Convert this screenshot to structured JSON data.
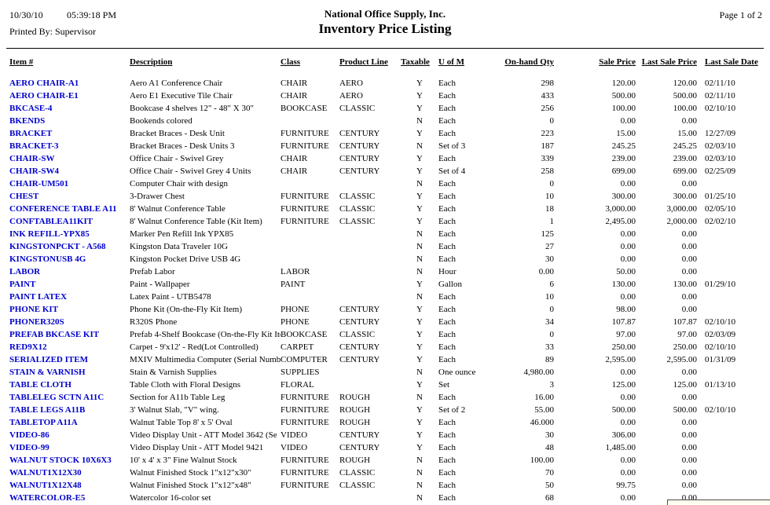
{
  "report": {
    "date": "10/30/10",
    "time": "05:39:18 PM",
    "printed_by": "Printed By: Supervisor",
    "company": "National Office Supply, Inc.",
    "title": "Inventory Price Listing",
    "page": "Page 1 of 2"
  },
  "colors": {
    "item_link": "#0000cc",
    "text": "#000000",
    "background": "#ffffff",
    "popup_fill": "#fffff0"
  },
  "table": {
    "columns": [
      "Item #",
      "Description",
      "Class",
      "Product Line",
      "Taxable",
      "U of M",
      "On-hand Qty",
      "Sale Price",
      "Last Sale Price",
      "Last Sale Date"
    ],
    "rows": [
      [
        "AERO CHAIR-A1",
        "Aero A1 Conference Chair",
        "CHAIR",
        "AERO",
        "Y",
        "Each",
        "298",
        "120.00",
        "120.00",
        "02/11/10"
      ],
      [
        "AERO CHAIR-E1",
        "Aero E1 Executive Tile Chair",
        "CHAIR",
        "AERO",
        "Y",
        "Each",
        "433",
        "500.00",
        "500.00",
        "02/11/10"
      ],
      [
        "BKCASE-4",
        "Bookcase 4 shelves 12\" - 48\" X 30\"",
        "BOOKCASE",
        "CLASSIC",
        "Y",
        "Each",
        "256",
        "100.00",
        "100.00",
        "02/10/10"
      ],
      [
        "BKENDS",
        "Bookends colored",
        "",
        "",
        "N",
        "Each",
        "0",
        "0.00",
        "0.00",
        ""
      ],
      [
        "BRACKET",
        "Bracket Braces - Desk Unit",
        "FURNITURE",
        "CENTURY",
        "Y",
        "Each",
        "223",
        "15.00",
        "15.00",
        "12/27/09"
      ],
      [
        "BRACKET-3",
        "Bracket Braces - Desk Units 3",
        "FURNITURE",
        "CENTURY",
        "N",
        "Set of 3",
        "187",
        "245.25",
        "245.25",
        "02/03/10"
      ],
      [
        "CHAIR-SW",
        "Office Chair - Swivel Grey",
        "CHAIR",
        "CENTURY",
        "Y",
        "Each",
        "339",
        "239.00",
        "239.00",
        "02/03/10"
      ],
      [
        "CHAIR-SW4",
        "Office Chair - Swivel Grey 4 Units",
        "CHAIR",
        "CENTURY",
        "Y",
        "Set of 4",
        "258",
        "699.00",
        "699.00",
        "02/25/09"
      ],
      [
        "CHAIR-UM501",
        "Computer Chair with design",
        "",
        "",
        "N",
        "Each",
        "0",
        "0.00",
        "0.00",
        ""
      ],
      [
        "CHEST",
        "3-Drawer Chest",
        "FURNITURE",
        "CLASSIC",
        "Y",
        "Each",
        "10",
        "300.00",
        "300.00",
        "01/25/10"
      ],
      [
        "CONFERENCE TABLE A11",
        "8' Walnut Conference Table",
        "FURNITURE",
        "CLASSIC",
        "Y",
        "Each",
        "18",
        "3,000.00",
        "3,000.00",
        "02/05/10"
      ],
      [
        "CONFTABLEA11KIT",
        "8' Walnut Conference Table (Kit Item)",
        "FURNITURE",
        "CLASSIC",
        "Y",
        "Each",
        "1",
        "2,495.00",
        "2,000.00",
        "02/02/10"
      ],
      [
        "INK REFILL-YPX85",
        "Marker Pen Refill Ink YPX85",
        "",
        "",
        "N",
        "Each",
        "125",
        "0.00",
        "0.00",
        ""
      ],
      [
        "KINGSTONPCKT - A568",
        "Kingston Data Traveler 10G",
        "",
        "",
        "N",
        "Each",
        "27",
        "0.00",
        "0.00",
        ""
      ],
      [
        "KINGSTONUSB 4G",
        "Kingston Pocket Drive USB 4G",
        "",
        "",
        "N",
        "Each",
        "30",
        "0.00",
        "0.00",
        ""
      ],
      [
        "LABOR",
        "Prefab Labor",
        "LABOR",
        "",
        "N",
        "Hour",
        "0.00",
        "50.00",
        "0.00",
        ""
      ],
      [
        "PAINT",
        "Paint - Wallpaper",
        "PAINT",
        "",
        "Y",
        "Gallon",
        "6",
        "130.00",
        "130.00",
        "01/29/10"
      ],
      [
        "PAINT LATEX",
        "Latex Paint - UTB5478",
        "",
        "",
        "N",
        "Each",
        "10",
        "0.00",
        "0.00",
        ""
      ],
      [
        "PHONE KIT",
        "Phone Kit (On-the-Fly Kit Item)",
        "PHONE",
        "CENTURY",
        "Y",
        "Each",
        "0",
        "98.00",
        "0.00",
        ""
      ],
      [
        "PHONER320S",
        "R320S Phone",
        "PHONE",
        "CENTURY",
        "Y",
        "Each",
        "34",
        "107.87",
        "107.87",
        "02/10/10"
      ],
      [
        "PREFAB BKCASE KIT",
        "Prefab 4-Shelf Bookcase (On-the-Fly Kit Ite",
        "BOOKCASE",
        "CLASSIC",
        "Y",
        "Each",
        "0",
        "97.00",
        "97.00",
        "02/03/09"
      ],
      [
        "RED9X12",
        "Carpet - 9'x12' - Red(Lot Controlled)",
        "CARPET",
        "CENTURY",
        "Y",
        "Each",
        "33",
        "250.00",
        "250.00",
        "02/10/10"
      ],
      [
        "SERIALIZED ITEM",
        "MXIV Multimedia Computer (Serial Numbe",
        "COMPUTER",
        "CENTURY",
        "Y",
        "Each",
        "89",
        "2,595.00",
        "2,595.00",
        "01/31/09"
      ],
      [
        "STAIN & VARNISH",
        "Stain & Varnish Supplies",
        "SUPPLIES",
        "",
        "N",
        "One ounce",
        "4,980.00",
        "0.00",
        "0.00",
        ""
      ],
      [
        "TABLE CLOTH",
        "Table Cloth with Floral Designs",
        "FLORAL",
        "",
        "Y",
        "Set",
        "3",
        "125.00",
        "125.00",
        "01/13/10"
      ],
      [
        "TABLELEG SCTN A11C",
        "Section for A11b Table Leg",
        "FURNITURE",
        "ROUGH",
        "N",
        "Each",
        "16.00",
        "0.00",
        "0.00",
        ""
      ],
      [
        "TABLE LEGS A11B",
        "3' Walnut Slab, \"V\" wing.",
        "FURNITURE",
        "ROUGH",
        "Y",
        "Set of 2",
        "55.00",
        "500.00",
        "500.00",
        "02/10/10"
      ],
      [
        "TABLETOP A11A",
        "Walnut Table Top 8' x 5' Oval",
        "FURNITURE",
        "ROUGH",
        "Y",
        "Each",
        "46.000",
        "0.00",
        "0.00",
        ""
      ],
      [
        "VIDEO-86",
        "Video Display Unit - ATT Model 3642 (Se",
        "VIDEO",
        "CENTURY",
        "Y",
        "Each",
        "30",
        "306.00",
        "0.00",
        ""
      ],
      [
        "VIDEO-99",
        "Video Display Unit - ATT Model 9421",
        "VIDEO",
        "CENTURY",
        "Y",
        "Each",
        "48",
        "1,485.00",
        "0.00",
        ""
      ],
      [
        "WALNUT STOCK 10X6X3",
        "10' x 4' x 3\" Fine Walnut Stock",
        "FURNITURE",
        "ROUGH",
        "N",
        "Each",
        "100.00",
        "0.00",
        "0.00",
        ""
      ],
      [
        "WALNUT1X12X30",
        "Walnut Finished Stock 1\"x12\"x30\"",
        "FURNITURE",
        "CLASSIC",
        "N",
        "Each",
        "70",
        "0.00",
        "0.00",
        ""
      ],
      [
        "WALNUT1X12X48",
        "Walnut Finished Stock 1\"x12\"x48\"",
        "FURNITURE",
        "CLASSIC",
        "N",
        "Each",
        "50",
        "99.75",
        "0.00",
        ""
      ],
      [
        "WATERCOLOR-E5",
        "Watercolor 16-color set",
        "",
        "",
        "N",
        "Each",
        "68",
        "0.00",
        "0.00",
        ""
      ]
    ]
  }
}
